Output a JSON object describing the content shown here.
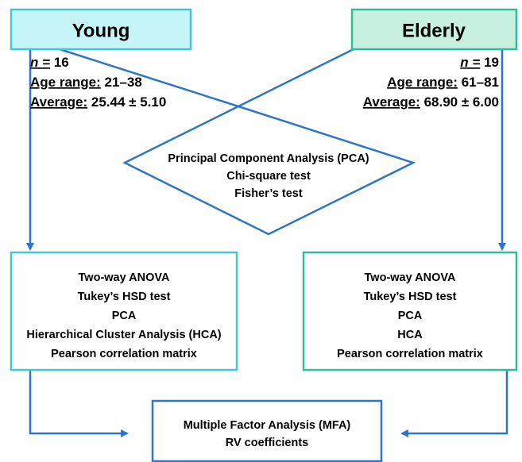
{
  "young": {
    "title": "Young",
    "stats": [
      {
        "label": "n =",
        "value": "16"
      },
      {
        "label": "Age range:",
        "value": "21–38"
      },
      {
        "label": "Average:",
        "value": "25.44 ± 5.10"
      }
    ],
    "analyses": [
      "Two-way ANOVA",
      "Tukey’s HSD test",
      "PCA",
      "Hierarchical Cluster Analysis  (HCA)",
      "Pearson correlation matrix"
    ]
  },
  "elderly": {
    "title": "Elderly",
    "stats": [
      {
        "label": "n =",
        "value": "19"
      },
      {
        "label": "Age range:",
        "value": "61–81"
      },
      {
        "label": "Average:",
        "value": "68.90 ± 6.00"
      }
    ],
    "analyses": [
      "Two-way ANOVA",
      "Tukey’s HSD test",
      "PCA",
      "HCA",
      "Pearson correlation matrix"
    ]
  },
  "comparison": [
    "Principal Component Analysis (PCA)",
    "Chi-square test",
    "Fisher’s test"
  ],
  "combined": [
    "Multiple Factor Analysis (MFA)",
    "RV coefficients"
  ]
}
